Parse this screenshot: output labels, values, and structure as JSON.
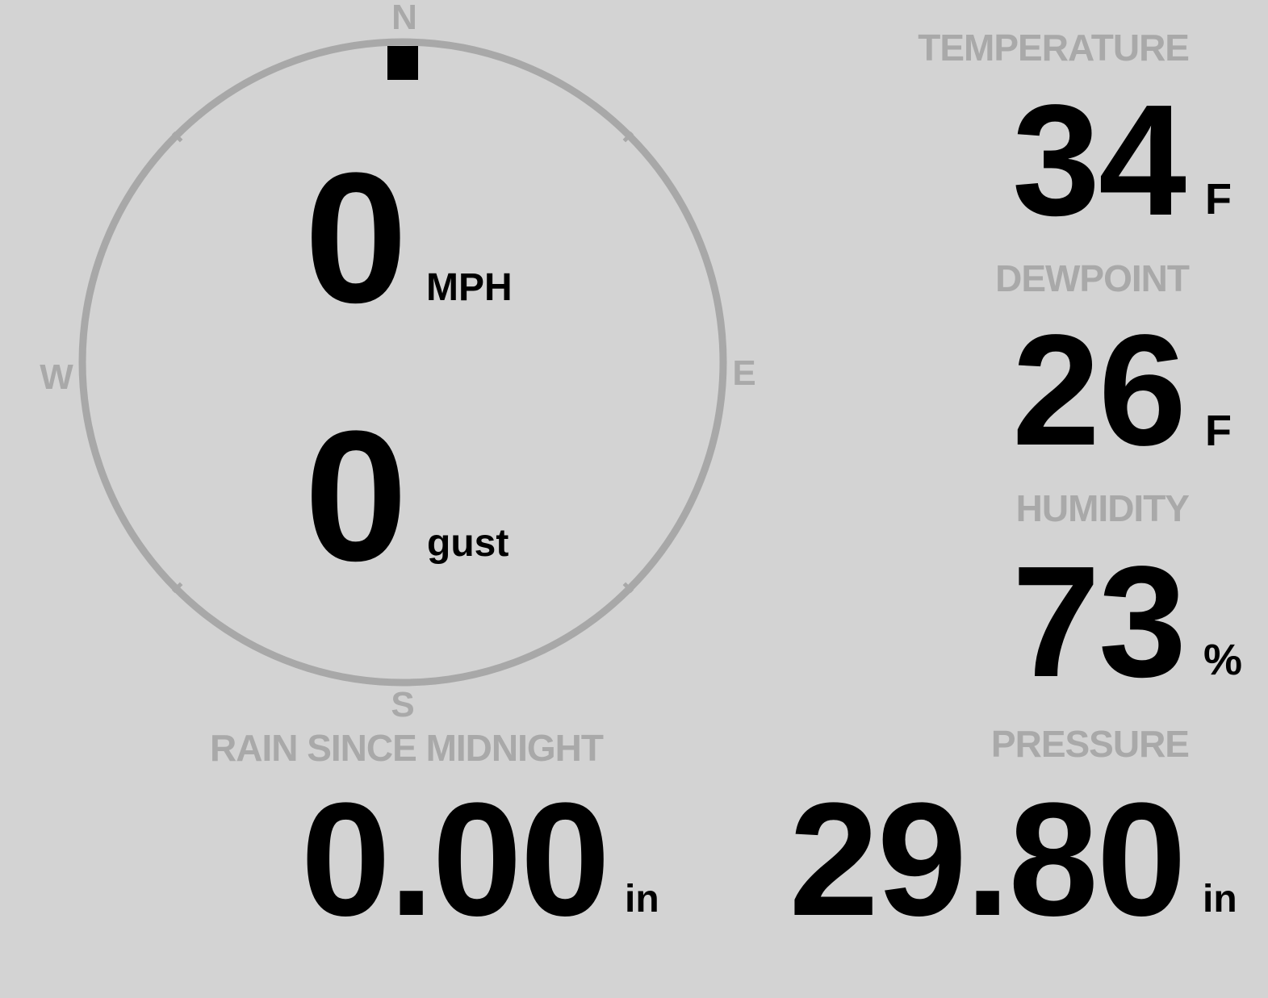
{
  "compass": {
    "north": "N",
    "south": "S",
    "east": "E",
    "west": "W",
    "wind_direction_deg": 0,
    "ring_color": "#a8a8a8"
  },
  "wind": {
    "speed": "0",
    "speed_unit": "MPH",
    "gust": "0",
    "gust_unit": "gust"
  },
  "temperature": {
    "label": "TEMPERATURE",
    "value": "34",
    "unit": "F"
  },
  "dewpoint": {
    "label": "DEWPOINT",
    "value": "26",
    "unit": "F"
  },
  "humidity": {
    "label": "HUMIDITY",
    "value": "73",
    "unit": "%"
  },
  "rain": {
    "label": "RAIN SINCE MIDNIGHT",
    "value": "0.00",
    "unit": "in"
  },
  "pressure": {
    "label": "PRESSURE",
    "value": "29.80",
    "unit": "in"
  }
}
